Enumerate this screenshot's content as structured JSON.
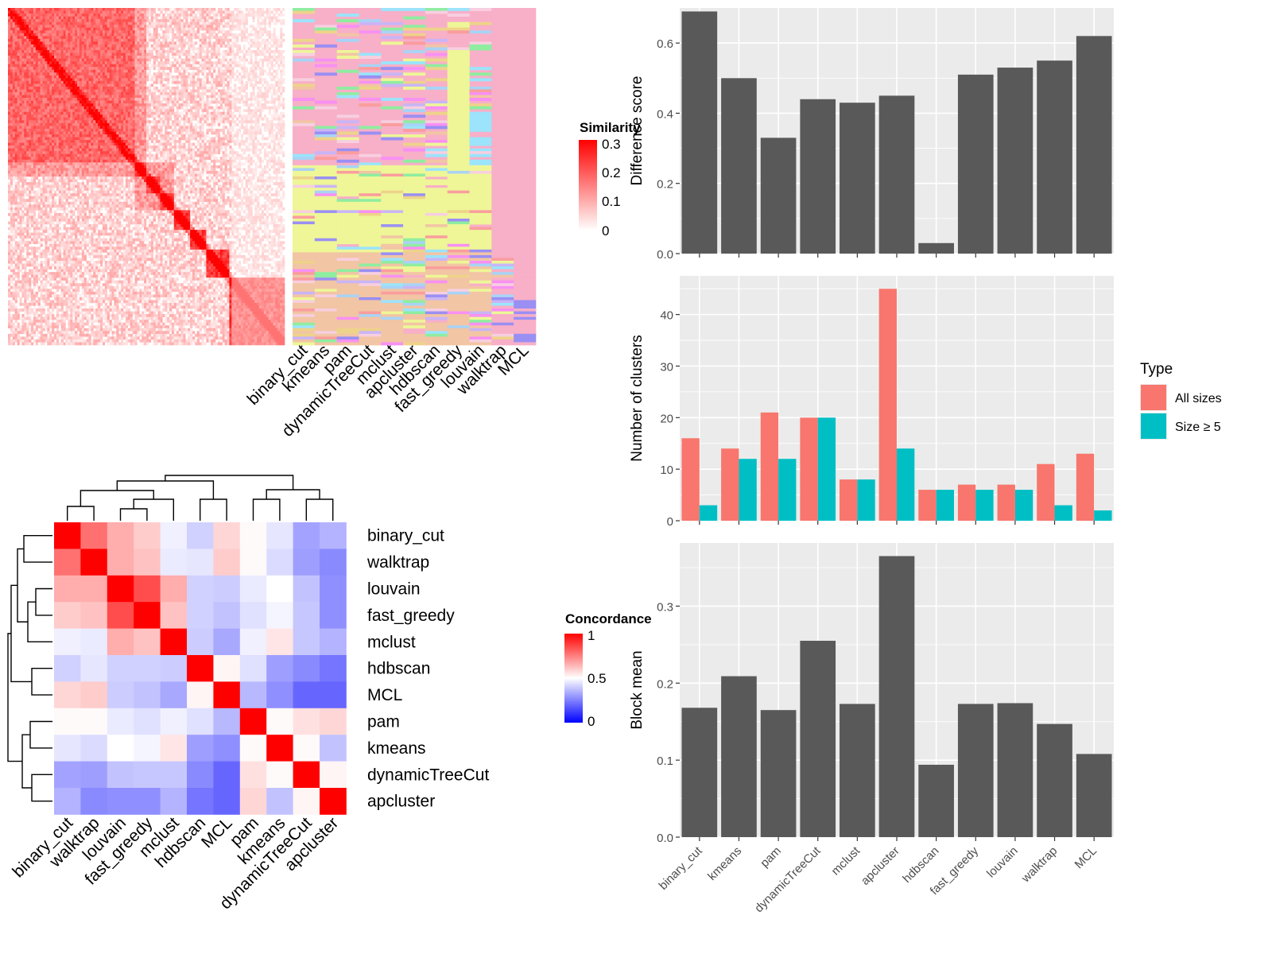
{
  "chart_data": [
    {
      "type": "heatmap",
      "name": "similarity-matrix-with-cluster-labels",
      "legend_title": "Similarity",
      "legend_ticks": [
        "0.3",
        "0.2",
        "0.1",
        "0"
      ],
      "scale_range": [
        0,
        0.3
      ],
      "colors": {
        "low": "#ffffff",
        "high": "#ff0000"
      },
      "block_boundaries": [
        0,
        0.46,
        0.5,
        0.55,
        0.6,
        0.66,
        0.72,
        0.8,
        1.0
      ],
      "label_columns": [
        "binary_cut",
        "kmeans",
        "pam",
        "dynamicTreeCut",
        "mclust",
        "apcluster",
        "hdbscan",
        "fast_greedy",
        "louvain",
        "walktrap",
        "MCL"
      ],
      "label_palette": [
        "#f8afc8",
        "#eef697",
        "#f2c5a4",
        "#9be4fb",
        "#9a8ff3",
        "#f890f3",
        "#8feda0",
        "#c9b5f6",
        "#f7cfe0",
        "#eed38a",
        "#fa9d9d",
        "#a9d3f5"
      ]
    },
    {
      "type": "heatmap",
      "name": "concordance-heatmap",
      "legend_title": "Concordance",
      "legend_ticks": [
        "1",
        "0.5",
        "0"
      ],
      "scale_range": [
        0,
        1
      ],
      "colors": {
        "low": "#0000ff",
        "mid": "#ffffff",
        "high": "#ff0000"
      },
      "row_labels": [
        "binary_cut",
        "walktrap",
        "louvain",
        "fast_greedy",
        "mclust",
        "hdbscan",
        "MCL",
        "pam",
        "kmeans",
        "dynamicTreeCut",
        "apcluster"
      ],
      "col_labels": [
        "binary_cut",
        "walktrap",
        "louvain",
        "fast_greedy",
        "mclust",
        "hdbscan",
        "MCL",
        "pam",
        "kmeans",
        "dynamicTreeCut",
        "apcluster"
      ],
      "values": [
        [
          1.0,
          0.78,
          0.66,
          0.6,
          0.47,
          0.41,
          0.58,
          0.51,
          0.45,
          0.32,
          0.35
        ],
        [
          0.78,
          1.0,
          0.66,
          0.62,
          0.46,
          0.45,
          0.6,
          0.51,
          0.43,
          0.31,
          0.27
        ],
        [
          0.66,
          0.66,
          1.0,
          0.85,
          0.66,
          0.41,
          0.4,
          0.46,
          0.5,
          0.38,
          0.28
        ],
        [
          0.6,
          0.62,
          0.85,
          1.0,
          0.62,
          0.41,
          0.38,
          0.44,
          0.48,
          0.39,
          0.28
        ],
        [
          0.47,
          0.46,
          0.66,
          0.62,
          1.0,
          0.4,
          0.33,
          0.47,
          0.55,
          0.39,
          0.35
        ],
        [
          0.41,
          0.45,
          0.41,
          0.41,
          0.4,
          1.0,
          0.52,
          0.44,
          0.31,
          0.27,
          0.23
        ],
        [
          0.58,
          0.6,
          0.4,
          0.38,
          0.33,
          0.52,
          1.0,
          0.36,
          0.28,
          0.2,
          0.2
        ],
        [
          0.51,
          0.51,
          0.46,
          0.44,
          0.47,
          0.44,
          0.36,
          1.0,
          0.51,
          0.56,
          0.58
        ],
        [
          0.45,
          0.43,
          0.5,
          0.48,
          0.55,
          0.31,
          0.28,
          0.51,
          1.0,
          0.51,
          0.38
        ],
        [
          0.32,
          0.31,
          0.38,
          0.39,
          0.39,
          0.27,
          0.2,
          0.56,
          0.51,
          1.0,
          0.52
        ],
        [
          0.35,
          0.27,
          0.28,
          0.28,
          0.35,
          0.23,
          0.2,
          0.58,
          0.38,
          0.52,
          1.0
        ]
      ]
    },
    {
      "type": "bar",
      "name": "difference-score",
      "categories": [
        "binary_cut",
        "kmeans",
        "pam",
        "dynamicTreeCut",
        "mclust",
        "apcluster",
        "hdbscan",
        "fast_greedy",
        "louvain",
        "walktrap",
        "MCL"
      ],
      "values": [
        0.69,
        0.5,
        0.33,
        0.44,
        0.43,
        0.45,
        0.03,
        0.51,
        0.53,
        0.55,
        0.62
      ],
      "ylabel": "Difference score",
      "ylim": [
        0,
        0.7
      ],
      "yticks": [
        "0.0",
        "0.2",
        "0.4",
        "0.6"
      ],
      "bar_color": "#595959",
      "panel_bg": "#ebebeb"
    },
    {
      "type": "bar",
      "name": "number-of-clusters",
      "categories": [
        "binary_cut",
        "kmeans",
        "pam",
        "dynamicTreeCut",
        "mclust",
        "apcluster",
        "hdbscan",
        "fast_greedy",
        "louvain",
        "walktrap",
        "MCL"
      ],
      "series": [
        {
          "name": "All sizes",
          "color": "#f8766d",
          "values": [
            16,
            14,
            21,
            20,
            8,
            45,
            6,
            7,
            7,
            11,
            13
          ]
        },
        {
          "name": "Size ≥ 5",
          "color": "#00bfc4",
          "values": [
            3,
            12,
            12,
            20,
            8,
            14,
            6,
            6,
            6,
            3,
            2
          ]
        }
      ],
      "ylabel": "Number of clusters",
      "ylim": [
        0,
        47.5
      ],
      "yticks": [
        "0",
        "10",
        "20",
        "30",
        "40"
      ],
      "legend_title": "Type",
      "legend_position": "right",
      "panel_bg": "#ebebeb"
    },
    {
      "type": "bar",
      "name": "block-mean",
      "categories": [
        "binary_cut",
        "kmeans",
        "pam",
        "dynamicTreeCut",
        "mclust",
        "apcluster",
        "hdbscan",
        "fast_greedy",
        "louvain",
        "walktrap",
        "MCL"
      ],
      "values": [
        0.168,
        0.209,
        0.165,
        0.255,
        0.173,
        0.365,
        0.094,
        0.173,
        0.174,
        0.147,
        0.108
      ],
      "ylabel": "Block mean",
      "ylim": [
        0,
        0.382
      ],
      "yticks": [
        "0.0",
        "0.1",
        "0.2",
        "0.3"
      ],
      "bar_color": "#595959",
      "panel_bg": "#ebebeb"
    }
  ]
}
